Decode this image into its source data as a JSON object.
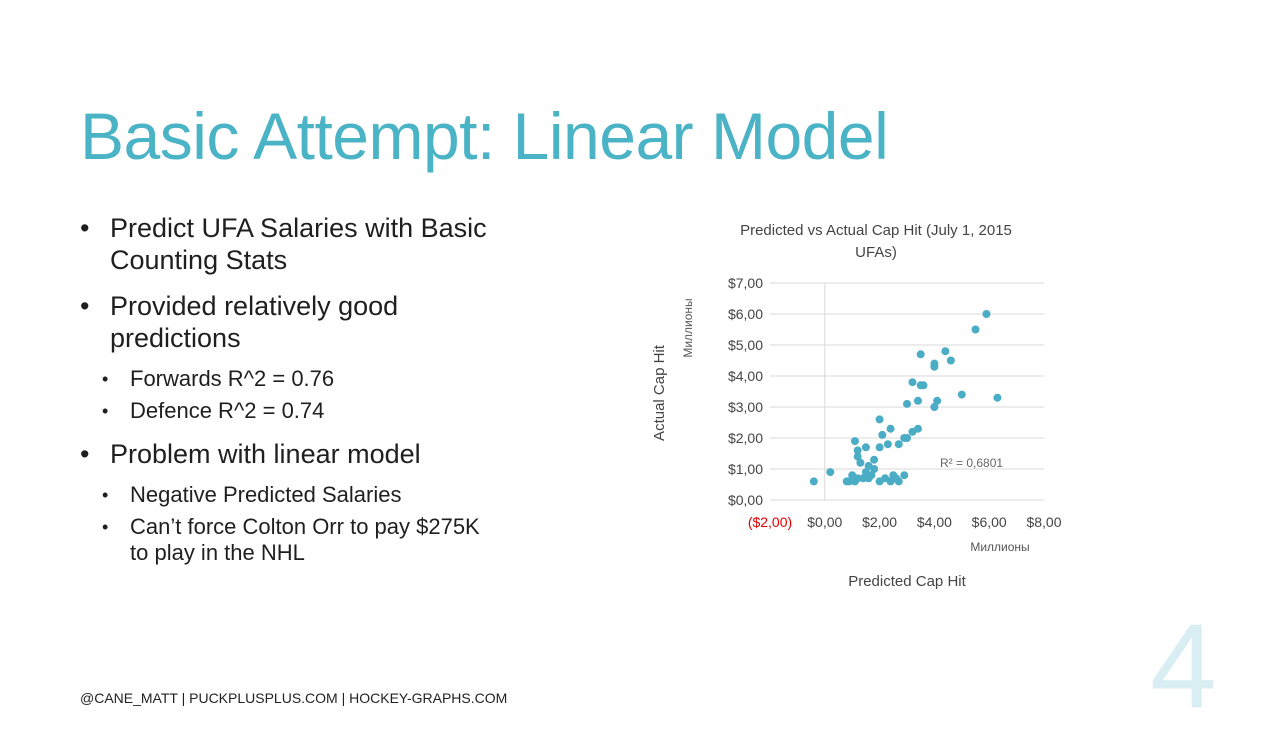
{
  "slide": {
    "title": "Basic Attempt: Linear Model",
    "bullets": [
      {
        "text": "Predict UFA Salaries with Basic Counting Stats",
        "sub": []
      },
      {
        "text": "Provided relatively good predictions",
        "sub": [
          "Forwards R^2 = 0.76",
          "Defence R^2 = 0.74"
        ]
      },
      {
        "text": "Problem with linear model",
        "sub": [
          "Negative Predicted Salaries",
          "Can’t force Colton Orr to pay $275K to play in the NHL"
        ]
      }
    ],
    "footer": "@CANE_MATT | PUCKPLUSPLUS.COM | HOCKEY-GRAPHS.COM",
    "page_number": "4"
  },
  "colors": {
    "accent": "#4bb3c6",
    "point": "#4bacc6",
    "negative_tick": "#e00000"
  },
  "chart_data": {
    "type": "scatter",
    "title": "Predicted vs Actual Cap Hit (July 1, 2015 UFAs)",
    "xlabel": "Predicted Cap Hit",
    "ylabel": "Actual Cap Hit",
    "x_unit_label": "Миллионы",
    "y_unit_label": "Миллионы",
    "xlim": [
      -2,
      8
    ],
    "ylim": [
      0,
      7
    ],
    "x_ticks": [
      "($2,00)",
      "$0,00",
      "$2,00",
      "$4,00",
      "$6,00",
      "$8,00"
    ],
    "y_ticks": [
      "$0,00",
      "$1,00",
      "$2,00",
      "$3,00",
      "$4,00",
      "$5,00",
      "$6,00",
      "$7,00"
    ],
    "grid": "horizontal",
    "annotation": "R² = 0,6801",
    "points": [
      [
        -0.4,
        0.6
      ],
      [
        0.2,
        0.9
      ],
      [
        0.9,
        0.6
      ],
      [
        0.8,
        0.6
      ],
      [
        1.1,
        0.6
      ],
      [
        1.0,
        0.8
      ],
      [
        1.2,
        0.7
      ],
      [
        1.4,
        0.7
      ],
      [
        1.5,
        0.9
      ],
      [
        1.6,
        0.7
      ],
      [
        1.7,
        0.8
      ],
      [
        1.8,
        1.0
      ],
      [
        2.0,
        0.6
      ],
      [
        2.2,
        0.7
      ],
      [
        2.4,
        0.6
      ],
      [
        2.5,
        0.8
      ],
      [
        2.6,
        0.7
      ],
      [
        2.7,
        0.6
      ],
      [
        2.9,
        0.8
      ],
      [
        1.3,
        1.2
      ],
      [
        1.6,
        1.1
      ],
      [
        1.8,
        1.3
      ],
      [
        2.0,
        1.7
      ],
      [
        1.2,
        1.6
      ],
      [
        1.5,
        1.7
      ],
      [
        1.1,
        1.9
      ],
      [
        1.2,
        1.4
      ],
      [
        2.3,
        1.8
      ],
      [
        2.0,
        2.6
      ],
      [
        2.1,
        2.1
      ],
      [
        2.4,
        2.3
      ],
      [
        2.7,
        1.8
      ],
      [
        3.0,
        2.0
      ],
      [
        3.2,
        2.2
      ],
      [
        3.4,
        2.3
      ],
      [
        2.9,
        2.0
      ],
      [
        3.0,
        3.1
      ],
      [
        3.2,
        3.8
      ],
      [
        3.4,
        3.2
      ],
      [
        3.5,
        3.7
      ],
      [
        3.5,
        4.7
      ],
      [
        4.0,
        3.0
      ],
      [
        4.1,
        3.2
      ],
      [
        4.0,
        4.3
      ],
      [
        4.4,
        4.8
      ],
      [
        4.6,
        4.5
      ],
      [
        5.0,
        3.4
      ],
      [
        5.5,
        5.5
      ],
      [
        5.9,
        6.0
      ],
      [
        6.3,
        3.3
      ],
      [
        4.0,
        4.4
      ],
      [
        3.6,
        3.7
      ]
    ]
  }
}
